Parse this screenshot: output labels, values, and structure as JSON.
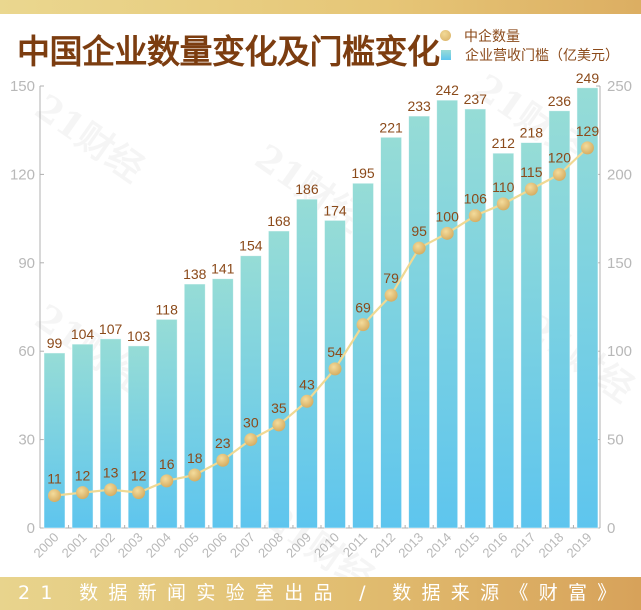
{
  "header": {
    "title": "中国企业数量变化及门槛变化"
  },
  "legend": {
    "items": [
      {
        "label": "中企数量",
        "marker": "circle",
        "color": "#e2bf72"
      },
      {
        "label": "企业营收门槛（亿美元）",
        "marker": "square",
        "color": "#6ccbe8"
      }
    ]
  },
  "watermark": "21财经",
  "footer": {
    "text": "21 数据新闻实验室出品 / 数据来源《财富》"
  },
  "colors": {
    "title": "#7c3d10",
    "label": "#8b4a1a",
    "bar_top": "#96dcd6",
    "bar_bottom": "#5ec5ee",
    "line": "#f0d993",
    "dot": "#dcb566",
    "axis": "#b0b0b0"
  },
  "chart_data": {
    "type": "bar",
    "title": "中国企业数量变化及门槛变化",
    "categories": [
      "2000",
      "2001",
      "2002",
      "2003",
      "2004",
      "2005",
      "2006",
      "2007",
      "2008",
      "2009",
      "2010",
      "2011",
      "2012",
      "2013",
      "2014",
      "2015",
      "2016",
      "2017",
      "2018",
      "2019"
    ],
    "series": [
      {
        "name": "企业营收门槛（亿美元）",
        "type": "bar",
        "axis": "right",
        "values": [
          99,
          104,
          107,
          103,
          118,
          138,
          141,
          154,
          168,
          186,
          174,
          195,
          221,
          233,
          242,
          237,
          212,
          218,
          236,
          249
        ]
      },
      {
        "name": "中企数量",
        "type": "line",
        "axis": "left",
        "values": [
          11,
          12,
          13,
          12,
          16,
          18,
          23,
          30,
          35,
          43,
          54,
          69,
          79,
          95,
          100,
          106,
          110,
          115,
          120,
          129
        ]
      }
    ],
    "left_axis": {
      "range": [
        0,
        150
      ],
      "ticks": [
        0,
        30,
        60,
        90,
        120,
        150
      ]
    },
    "right_axis": {
      "range": [
        0,
        250
      ],
      "ticks": [
        0,
        50,
        100,
        150,
        200,
        250
      ]
    },
    "xlabel": "",
    "ylabel_left": "",
    "ylabel_right": "",
    "grid": false,
    "legend_position": "top-right"
  }
}
